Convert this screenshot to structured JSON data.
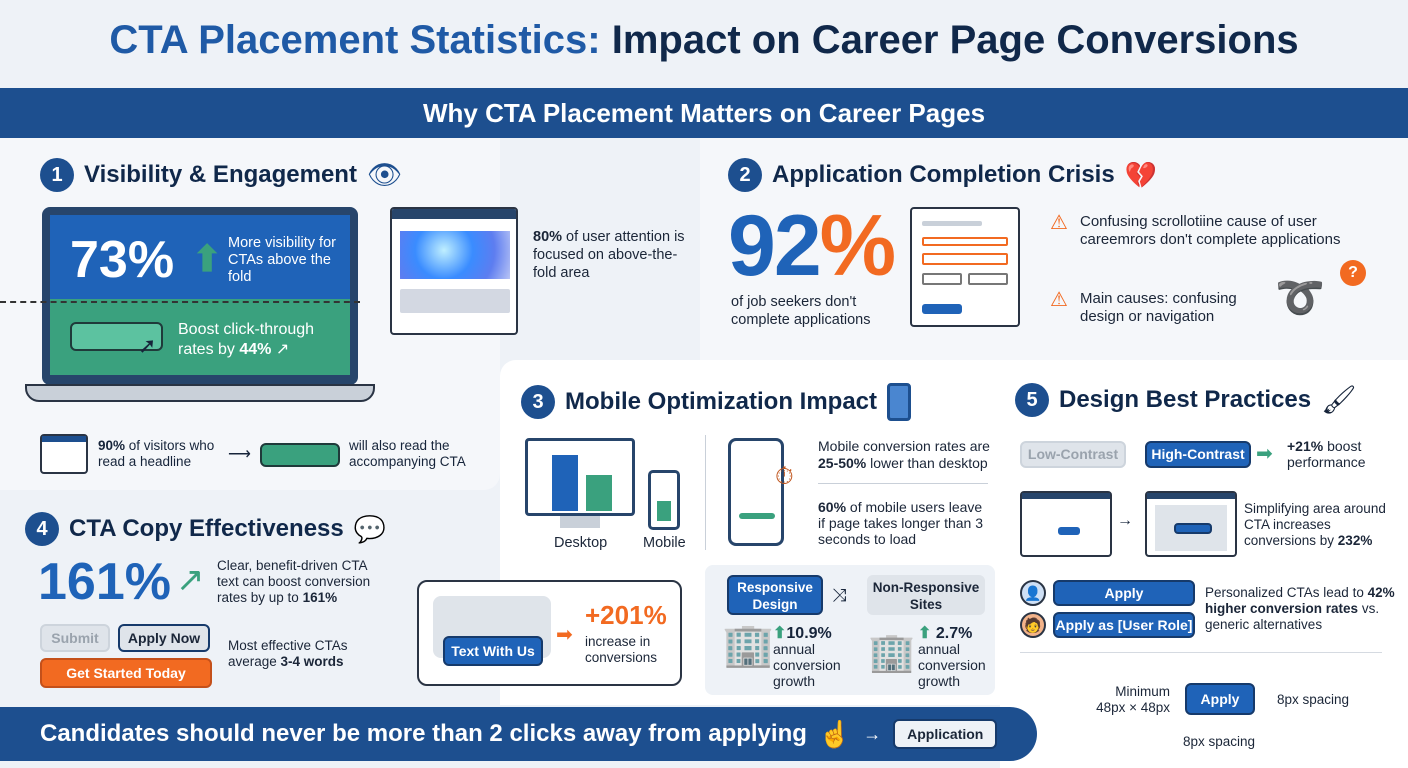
{
  "title": {
    "part1": "CTA Placement Statistics:",
    "part2": " Impact on Career Page Conversions"
  },
  "banner": "Why CTA Placement Matters on Career Pages",
  "s1": {
    "num": "1",
    "heading": "Visibility & Engagement",
    "stat": "73%",
    "stat_text": "More visibility for CTAs above the fold",
    "boost_pre": "Boost click-through rates by ",
    "boost_val": "44%",
    "attention_val": "80%",
    "attention_text": " of user attention is focused on above-the-fold area",
    "headline_val": "90%",
    "headline_text": " of visitors who read a headline",
    "cta_text": "will also read the accompanying CTA"
  },
  "s2": {
    "num": "2",
    "heading": "Application Completion Crisis",
    "stat": "92%",
    "stat_text": "of job seekers don't complete applications",
    "warn1": "Confusing scrollotiine cause of user careemrors don't complete applications",
    "warn2": "Main causes: confusing design or navigation"
  },
  "s3": {
    "num": "3",
    "heading": "Mobile Optimization Impact",
    "desktop": "Desktop",
    "mobile": "Mobile",
    "m1_pre": "Mobile conversion rates are ",
    "m1_val": "25-50%",
    "m1_post": " lower than desktop",
    "m2_val": "60%",
    "m2_text": " of mobile users leave if page takes longer than 3 seconds to load",
    "text_btn": "Text With Us",
    "text_stat": "+201%",
    "text_desc": "increase in conversions",
    "responsive": "Responsive Design",
    "nonresponsive": "Non-Responsive Sites",
    "r_val": "10.9%",
    "nr_val": "2.7%",
    "growth": "annual conversion growth"
  },
  "s4": {
    "num": "4",
    "heading": "CTA Copy Effectiveness",
    "stat": "161%",
    "desc_pre": "Clear, benefit-driven CTA text can boost conversion rates by up to ",
    "desc_val": "161%",
    "btn_submit": "Submit",
    "btn_apply_now": "Apply Now",
    "btn_get_started": "Get Started Today",
    "words_pre": "Most effective CTAs average ",
    "words_val": "3-4 words"
  },
  "s5": {
    "num": "5",
    "heading": "Design Best Practices",
    "low": "Low-Contrast",
    "high": "High-Contrast",
    "boost_val": "+21%",
    "boost_text": " boost performance",
    "simplify_pre": "Simplifying area around CTA increases conversions by ",
    "simplify_val": "232%",
    "apply": "Apply",
    "apply_role": "Apply as [User Role]",
    "personal_pre": "Personalized CTAs lead to ",
    "personal_val": "42% higher conversion rates",
    "personal_post": " vs. generic alternatives",
    "min_size": "Minimum 48px × 48px",
    "spacing_right": "8px spacing",
    "spacing_bottom": "8px spacing"
  },
  "footer": {
    "text": "Candidates should never be more than 2 clicks away from applying",
    "btn": "Application"
  },
  "colors": {
    "navy": "#1d4f8f",
    "green": "#3aa17e",
    "orange": "#f26a21",
    "blue": "#1f63b8"
  }
}
